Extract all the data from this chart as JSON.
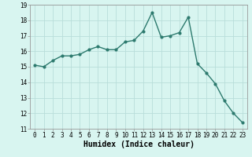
{
  "x": [
    0,
    1,
    2,
    3,
    4,
    5,
    6,
    7,
    8,
    9,
    10,
    11,
    12,
    13,
    14,
    15,
    16,
    17,
    18,
    19,
    20,
    21,
    22,
    23
  ],
  "y": [
    15.1,
    15.0,
    15.4,
    15.7,
    15.7,
    15.8,
    16.1,
    16.3,
    16.1,
    16.1,
    16.6,
    16.7,
    17.3,
    18.5,
    16.9,
    17.0,
    17.2,
    18.2,
    15.2,
    14.6,
    13.9,
    12.8,
    12.0,
    11.4
  ],
  "line_color": "#2d7a6e",
  "marker": "o",
  "marker_size": 2.0,
  "line_width": 1.0,
  "bg_color": "#d8f5f0",
  "grid_color": "#b8deda",
  "xlabel": "Humidex (Indice chaleur)",
  "xlabel_fontsize": 7,
  "tick_fontsize": 5.5,
  "ylim": [
    11,
    19
  ],
  "xlim": [
    -0.5,
    23.5
  ],
  "yticks": [
    11,
    12,
    13,
    14,
    15,
    16,
    17,
    18,
    19
  ],
  "xticks": [
    0,
    1,
    2,
    3,
    4,
    5,
    6,
    7,
    8,
    9,
    10,
    11,
    12,
    13,
    14,
    15,
    16,
    17,
    18,
    19,
    20,
    21,
    22,
    23
  ]
}
